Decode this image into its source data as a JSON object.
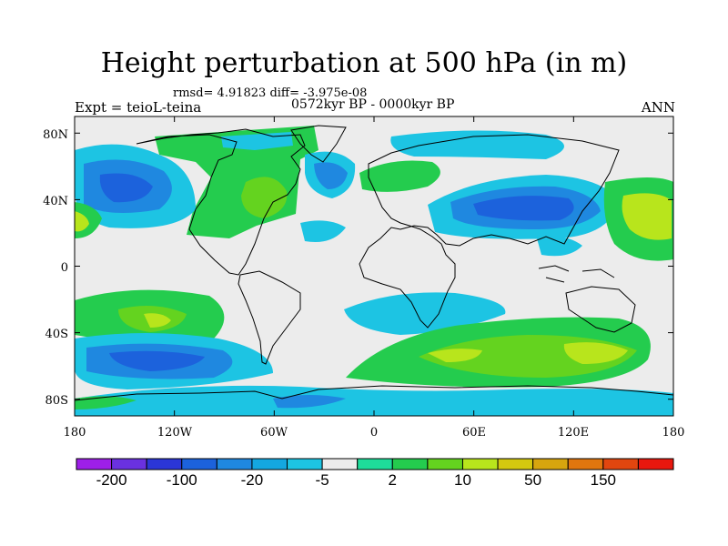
{
  "title": "Height perturbation at 500 hPa (in m)",
  "stats": "rmsd= 4.91823 diff= -3.975e-08",
  "period": "0572kyr BP - 0000kyr BP",
  "experiment": "Expt = teioL-teina",
  "season": "ANN",
  "map": {
    "projection": "cylindrical equidistant",
    "lon_range": [
      -180,
      180
    ],
    "lat_range": [
      -90,
      90
    ],
    "y_ticks": [
      {
        "label": "80N",
        "lat": 80
      },
      {
        "label": "40N",
        "lat": 40
      },
      {
        "label": "0",
        "lat": 0
      },
      {
        "label": "40S",
        "lat": -40
      },
      {
        "label": "80S",
        "lat": -80
      }
    ],
    "x_ticks": [
      {
        "label": "180",
        "lon": -180
      },
      {
        "label": "120W",
        "lon": -120
      },
      {
        "label": "60W",
        "lon": -60
      },
      {
        "label": "0",
        "lon": 0
      },
      {
        "label": "60E",
        "lon": 60
      },
      {
        "label": "120E",
        "lon": 120
      },
      {
        "label": "180",
        "lon": 180
      }
    ]
  },
  "colorbar": {
    "colors": [
      "#9e1fe8",
      "#6a31e0",
      "#2b36d6",
      "#1c62dc",
      "#1f88e0",
      "#14a7e0",
      "#1dc4e3",
      "#ececec",
      "#1edc9a",
      "#24cc4e",
      "#64d31f",
      "#b8e51c",
      "#d4c80f",
      "#d7a50e",
      "#e1760e",
      "#e1460f",
      "#e8170e"
    ],
    "labels": [
      {
        "text": "-200",
        "boundary": 1
      },
      {
        "text": "-100",
        "boundary": 3
      },
      {
        "text": "-20",
        "boundary": 5
      },
      {
        "text": "-5",
        "boundary": 7
      },
      {
        "text": "2",
        "boundary": 9
      },
      {
        "text": "10",
        "boundary": 11
      },
      {
        "text": "50",
        "boundary": 13
      },
      {
        "text": "150",
        "boundary": 15
      }
    ]
  }
}
